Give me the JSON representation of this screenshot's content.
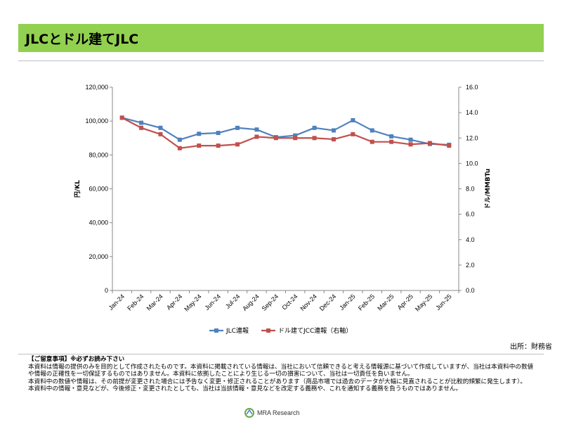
{
  "title": "JLCとドル建てJLC",
  "source": "出所：財務省",
  "chart_data": {
    "type": "line",
    "categories": [
      "Jan-24",
      "Feb-24",
      "Mar-24",
      "Apr-24",
      "May-24",
      "Jun-24",
      "Jul-24",
      "Aug-24",
      "Sep-24",
      "Oct-24",
      "Nov-24",
      "Dec-24",
      "Jan-25",
      "Feb-25",
      "Mar-25",
      "Apr-25",
      "May-25",
      "Jun-25"
    ],
    "y_left": {
      "label": "円/KL",
      "ylim": [
        0,
        120000
      ],
      "ticks": [
        "0",
        "20,000",
        "40,000",
        "60,000",
        "80,000",
        "100,000",
        "120,000"
      ]
    },
    "y_right": {
      "label": "ドル/MMBTu",
      "ylim": [
        0,
        16
      ],
      "ticks": [
        "0.0",
        "2.0",
        "4.0",
        "6.0",
        "8.0",
        "10.0",
        "12.0",
        "14.0",
        "16.0"
      ]
    },
    "series": [
      {
        "name": "JLC連報",
        "axis": "left",
        "color": "#4f81bd",
        "values": [
          102000,
          99000,
          96000,
          89000,
          92500,
          93000,
          96000,
          95000,
          90500,
          91500,
          96000,
          94500,
          100500,
          94500,
          91000,
          89000,
          86500,
          86000
        ]
      },
      {
        "name": "ドル建てJCC連報（右軸）",
        "axis": "right",
        "color": "#c0504d",
        "values": [
          13.6,
          12.8,
          12.3,
          11.2,
          11.4,
          11.4,
          11.5,
          12.1,
          12.0,
          12.0,
          12.0,
          11.9,
          12.3,
          11.7,
          11.7,
          11.5,
          11.6,
          11.4
        ]
      }
    ],
    "legend_position": "bottom",
    "grid": false
  },
  "notes": {
    "heading": "【ご留意事項】※必ずお読み下さい",
    "lines": [
      "本資料は情報の提供のみを目的として作成されたものです。本資料に掲載されている情報は、当社において信頼できると考える情報源に基づいて作成していますが、当社は本資料中の数値や情報の正確性を一切保証するものではありません。本資料に依拠したことにより生じる一切の損害について、当社は一切責任を負いません。",
      "本資料中の数値や情報は、その前提が変更された場合には予告なく変更・修正されることがあります（商品市場では過去のデータが大幅に見直されることが比較的頻繁に発生します）。",
      "本資料中の情報・意見などが、今後修正・変更されたとしても、当社は当該情報・意見などを改定する義務や、これを通知する義務を負うものではありません。"
    ]
  },
  "footer": {
    "logo_text": "MRA Research"
  }
}
